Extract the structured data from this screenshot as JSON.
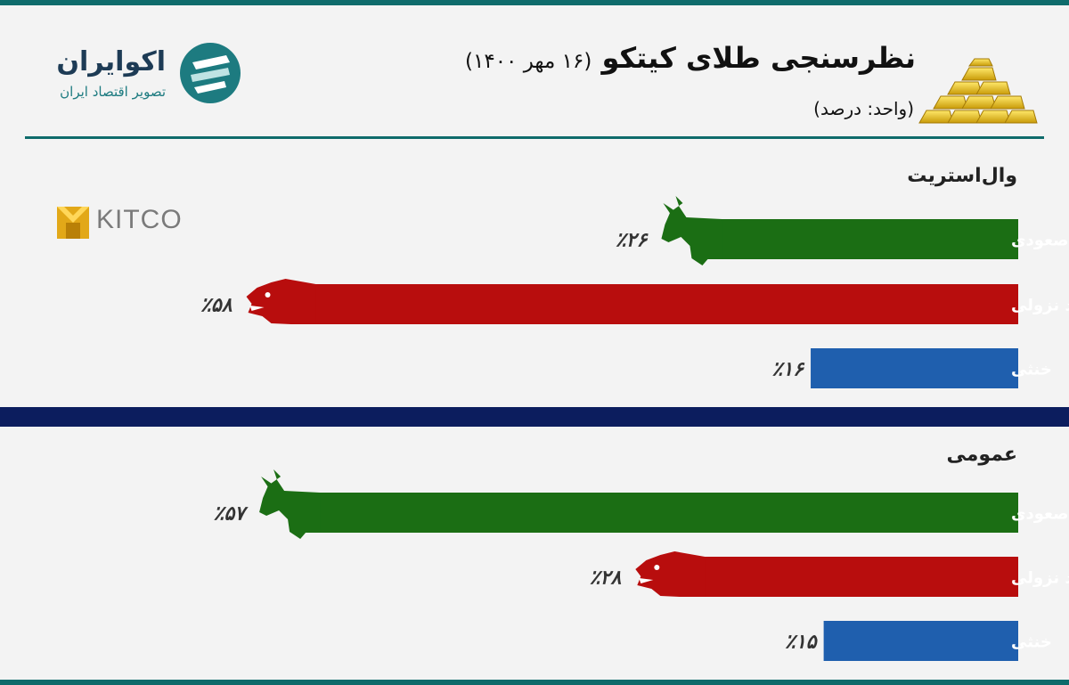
{
  "header": {
    "title": "نظرسنجی طلای کیتکو",
    "date": "(۱۶ مهر ۱۴۰۰)",
    "unit": "(واحد: درصد)"
  },
  "logo": {
    "name": "اکوایران",
    "tagline": "تصویر اقتصاد ایران"
  },
  "kitco_logo": "KITCO",
  "colors": {
    "bullish": "#1b6e14",
    "bearish": "#b80d0d",
    "neutral": "#1f5fae",
    "teal": "#0e6b6b",
    "navy": "#0c1d5e"
  },
  "chart_data": [
    {
      "type": "bar",
      "title": "وال‌استریت",
      "categories": [
        "روند صعودی",
        "روند نزولی",
        "خنثی"
      ],
      "values": [
        26,
        58,
        16
      ],
      "value_labels": [
        "٪۲۶",
        "٪۵۸",
        "٪۱۶"
      ],
      "unit": "درصد"
    },
    {
      "type": "bar",
      "title": "عمومی",
      "categories": [
        "روند صعودی",
        "روند نزولی",
        "خنثی"
      ],
      "values": [
        57,
        28,
        15
      ],
      "value_labels": [
        "٪۵۷",
        "٪۲۸",
        "٪۱۵"
      ],
      "unit": "درصد"
    }
  ]
}
